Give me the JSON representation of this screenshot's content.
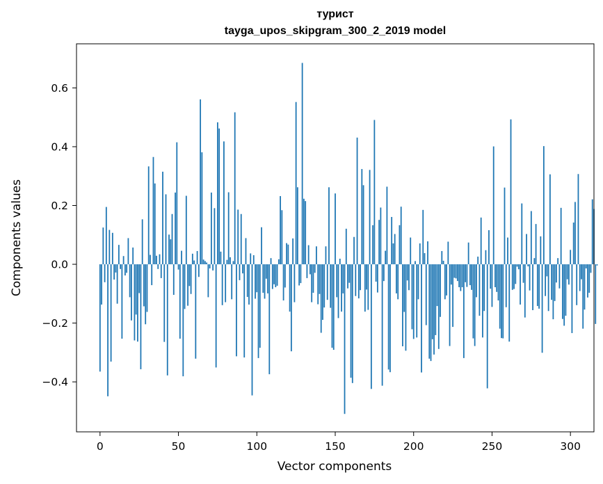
{
  "chart_data": {
    "type": "bar",
    "title": "турист",
    "subtitle": "tayga_upos_skipgram_300_2_2019 model",
    "xlabel": "Vector components",
    "ylabel": "Components values",
    "xlim": [
      -15,
      315
    ],
    "ylim": [
      -0.57,
      0.75
    ],
    "xticks": [
      0,
      50,
      100,
      150,
      200,
      250,
      300
    ],
    "yticks": [
      -0.4,
      -0.2,
      0.0,
      0.2,
      0.4,
      0.6
    ],
    "xtick_labels": [
      "0",
      "50",
      "100",
      "150",
      "200",
      "250",
      "300"
    ],
    "ytick_labels": [
      "−0.4",
      "−0.2",
      "0.0",
      "0.2",
      "0.4",
      "0.6"
    ],
    "grid": false,
    "bar_color": "#1f77b4",
    "values": [
      -0.365,
      -0.137,
      0.125,
      -0.061,
      0.195,
      -0.449,
      0.117,
      -0.331,
      0.107,
      -0.052,
      -0.028,
      -0.134,
      0.066,
      -0.016,
      -0.253,
      0.028,
      -0.038,
      -0.029,
      0.089,
      -0.112,
      -0.191,
      0.057,
      -0.259,
      -0.171,
      -0.263,
      -0.098,
      -0.357,
      0.153,
      -0.143,
      -0.204,
      -0.162,
      0.333,
      0.032,
      -0.071,
      0.365,
      0.275,
      0.029,
      -0.016,
      0.034,
      -0.047,
      0.315,
      -0.264,
      0.238,
      -0.378,
      0.101,
      0.085,
      0.171,
      -0.104,
      0.244,
      0.415,
      -0.018,
      -0.253,
      0.046,
      -0.381,
      -0.152,
      0.233,
      -0.141,
      -0.074,
      -0.101,
      0.036,
      0.013,
      -0.321,
      0.045,
      -0.043,
      0.561,
      0.381,
      0.016,
      0.011,
      0.006,
      -0.112,
      -0.014,
      0.244,
      -0.021,
      0.191,
      -0.351,
      0.483,
      0.462,
      0.043,
      -0.139,
      0.418,
      -0.129,
      0.015,
      0.245,
      0.024,
      -0.119,
      0.011,
      0.517,
      -0.313,
      0.186,
      -0.054,
      0.171,
      -0.031,
      -0.317,
      0.089,
      -0.111,
      -0.137,
      0.037,
      -0.446,
      0.031,
      -0.117,
      -0.095,
      -0.319,
      -0.284,
      0.126,
      -0.097,
      -0.117,
      -0.049,
      -0.099,
      -0.374,
      0.021,
      -0.084,
      -0.068,
      -0.078,
      -0.073,
      0.017,
      0.232,
      0.184,
      -0.123,
      -0.079,
      0.072,
      0.067,
      -0.161,
      -0.296,
      0.088,
      -0.129,
      0.552,
      0.262,
      -0.072,
      -0.064,
      0.685,
      0.223,
      0.215,
      -0.047,
      0.065,
      -0.034,
      -0.129,
      -0.097,
      -0.029,
      0.061,
      -0.136,
      -0.101,
      -0.233,
      -0.189,
      -0.147,
      0.061,
      -0.121,
      0.262,
      -0.148,
      -0.284,
      -0.291,
      0.241,
      -0.112,
      -0.183,
      0.019,
      -0.161,
      -0.099,
      -0.509,
      0.121,
      -0.082,
      -0.063,
      -0.386,
      -0.404,
      0.093,
      -0.108,
      0.431,
      -0.116,
      -0.088,
      0.324,
      0.269,
      -0.161,
      -0.086,
      -0.155,
      0.321,
      -0.424,
      0.133,
      0.491,
      -0.059,
      -0.096,
      0.151,
      0.193,
      -0.413,
      -0.057,
      0.046,
      0.264,
      -0.358,
      -0.367,
      0.161,
      0.071,
      0.103,
      -0.099,
      -0.119,
      0.133,
      0.196,
      -0.279,
      -0.162,
      -0.294,
      -0.055,
      -0.088,
      0.091,
      -0.221,
      -0.254,
      0.011,
      -0.249,
      -0.119,
      0.071,
      -0.368,
      0.185,
      0.038,
      -0.207,
      0.078,
      -0.321,
      -0.329,
      -0.255,
      -0.307,
      -0.241,
      -0.142,
      -0.288,
      -0.179,
      0.045,
      0.012,
      -0.119,
      -0.106,
      0.077,
      -0.278,
      -0.069,
      -0.213,
      -0.046,
      -0.048,
      -0.057,
      -0.078,
      -0.091,
      -0.078,
      -0.319,
      -0.061,
      -0.077,
      0.074,
      -0.071,
      -0.087,
      -0.252,
      -0.278,
      -0.112,
      0.026,
      -0.175,
      0.159,
      -0.249,
      -0.159,
      0.048,
      -0.422,
      0.116,
      -0.083,
      -0.145,
      0.401,
      -0.078,
      -0.094,
      -0.123,
      -0.219,
      -0.251,
      -0.252,
      0.261,
      -0.146,
      0.091,
      -0.263,
      0.493,
      -0.087,
      -0.084,
      -0.067,
      -0.008,
      -0.017,
      -0.137,
      0.207,
      -0.063,
      -0.181,
      0.103,
      -0.007,
      -0.089,
      0.181,
      -0.156,
      0.021,
      0.137,
      -0.142,
      -0.151,
      0.095,
      -0.301,
      0.402,
      -0.108,
      -0.041,
      -0.159,
      0.306,
      -0.121,
      -0.187,
      -0.125,
      -0.062,
      0.021,
      -0.082,
      0.192,
      -0.186,
      -0.209,
      -0.175,
      -0.051,
      -0.069,
      0.049,
      -0.234,
      0.142,
      0.212,
      -0.139,
      0.307,
      -0.091,
      -0.051,
      -0.219,
      -0.154,
      -0.014,
      -0.113,
      -0.097,
      -0.029,
      0.221,
      0.188,
      -0.203,
      -0.004
    ]
  }
}
